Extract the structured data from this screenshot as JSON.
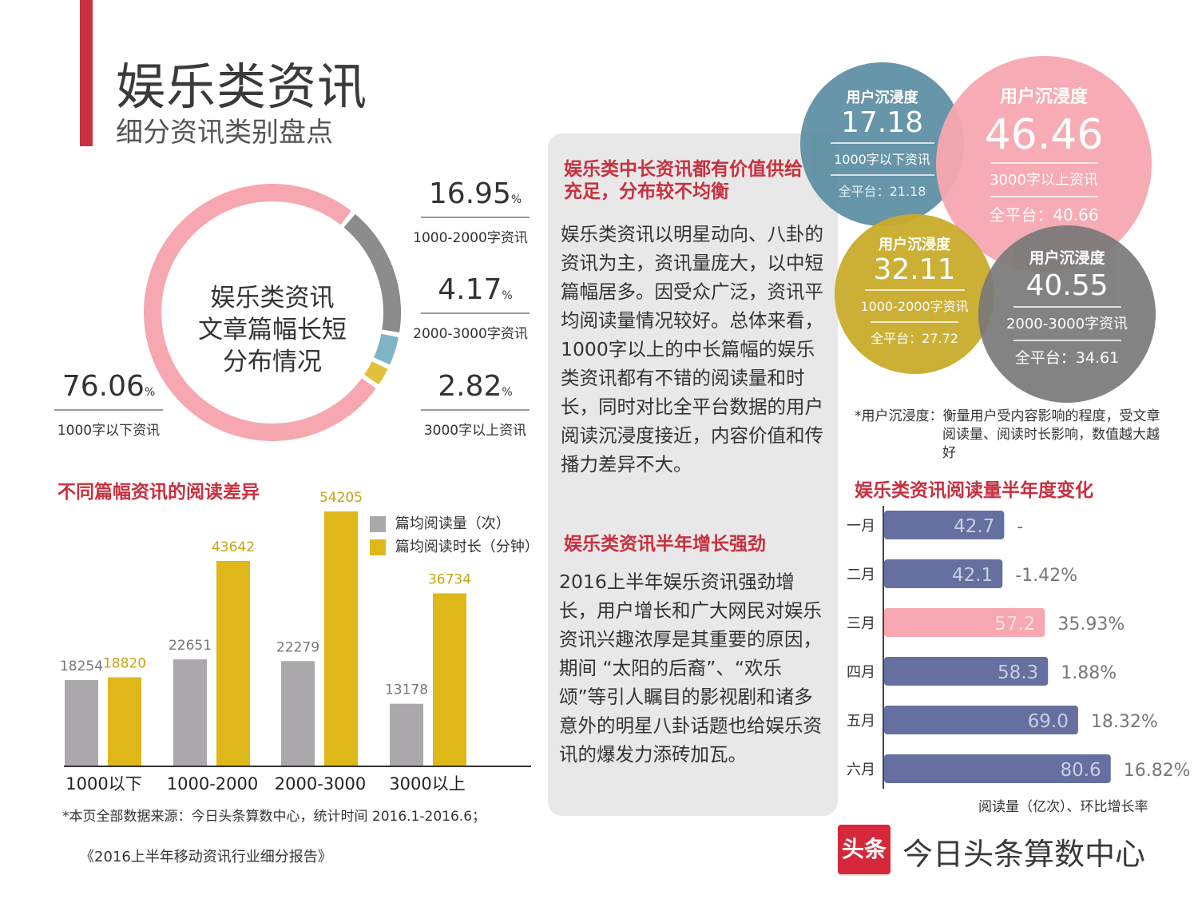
{
  "header": {
    "title": "娱乐类资讯",
    "subtitle": "细分资讯类别盘点"
  },
  "donut": {
    "center_lines": [
      "娱乐类资讯",
      "文章篇幅长短",
      "分布情况"
    ],
    "percent_unit": "%"
  },
  "reading_chart_title": "不同篇幅资讯的阅读差异",
  "right_chart_title": "娱乐类资讯阅读量半年度变化",
  "immersion_note": "*用户沉浸度：衡量用户受内容影响的程度，受文章阅读量、阅读时长影响，数值越大越好",
  "panel": {
    "heading1": "娱乐类中长资讯都有价值供给充足，分布较不均衡",
    "body1": "娱乐类资讯以明星动向、八卦的资讯为主，资讯量庞大，以中短篇幅居多。因受众广泛，资讯平均阅读量情况较好。总体来看，1000字以上的中长篇幅的娱乐类资讯都有不错的阅读量和时长，同时对比全平台数据的用户阅读沉浸度接近，内容价值和传播力差异不大。",
    "heading2": "娱乐类资讯半年增长强劲",
    "body2": "2016上半年娱乐资讯强劲增长，用户增长和广大网民对娱乐资讯兴趣浓厚是其重要的原因，期间 “太阳的后裔”、“欢乐颂”等引人瞩目的影视剧和诸多意外的明星八卦话题也给娱乐资讯的爆发力添砖加瓦。"
  },
  "bubbles": [
    {
      "title": "用户沉浸度",
      "value": "17.18",
      "category": "1000字以下资讯",
      "platform": "全平台：21.18",
      "color": "#5c8ea3"
    },
    {
      "title": "用户沉浸度",
      "value": "46.46",
      "category": "3000字以上资讯",
      "platform": "全平台：40.66",
      "color": "#f7a7b0"
    },
    {
      "title": "用户沉浸度",
      "value": "32.11",
      "category": "1000-2000字资讯",
      "platform": "全平台：27.72",
      "color": "#c9ac2b"
    },
    {
      "title": "用户沉浸度",
      "value": "40.55",
      "category": "2000-3000字资讯",
      "platform": "全平台：34.61",
      "color": "#797979"
    }
  ],
  "footer": {
    "source": "*本页全部数据来源：今日头条算数中心，统计时间 2016.1-2016.6；",
    "report": "《2016上半年移动资讯行业细分报告》",
    "brand_box": "头条",
    "brand_text": "今日头条算数中心"
  },
  "chart_data": [
    {
      "type": "pie",
      "title": "娱乐类资讯文章篇幅长短分布情况",
      "categories": [
        "1000字以下资讯",
        "1000-2000字资讯",
        "2000-3000字资讯",
        "3000字以上资讯"
      ],
      "values": [
        76.06,
        16.95,
        4.17,
        2.82
      ],
      "labels": [
        "76.06",
        "16.95",
        "4.17",
        "2.82"
      ],
      "colors": [
        "#f7a7b0",
        "#8c8c8c",
        "#7fb3c7",
        "#e3c03a"
      ]
    },
    {
      "type": "bar",
      "title": "不同篇幅资讯的阅读差异",
      "categories": [
        "1000以下",
        "1000-2000",
        "2000-3000",
        "3000以上"
      ],
      "series": [
        {
          "name": "篇均阅读量（次）",
          "values": [
            18254,
            22651,
            22279,
            13178
          ],
          "color": "#aaa8ab"
        },
        {
          "name": "篇均阅读时长（分钟）",
          "values": [
            18820,
            43642,
            54205,
            36734
          ],
          "color": "#e0b719"
        }
      ],
      "ylim": [
        0,
        60000
      ]
    },
    {
      "type": "bar",
      "orientation": "horizontal",
      "title": "娱乐类资讯阅读量半年度变化",
      "categories": [
        "一月",
        "二月",
        "三月",
        "四月",
        "五月",
        "六月"
      ],
      "values": [
        42.7,
        42.1,
        57.2,
        58.3,
        69.0,
        80.6
      ],
      "value_labels": [
        "42.7",
        "42.1",
        "57.2",
        "58.3",
        "69.0",
        "80.6"
      ],
      "growth": [
        "-",
        "-1.42%",
        "35.93%",
        "1.88%",
        "18.32%",
        "16.82%"
      ],
      "highlight_index": 2,
      "bar_color": "#6570a0",
      "highlight_color": "#f7a7b0",
      "xlim": [
        0,
        85
      ],
      "unit_note": "阅读量（亿次）、环比增长率"
    }
  ]
}
